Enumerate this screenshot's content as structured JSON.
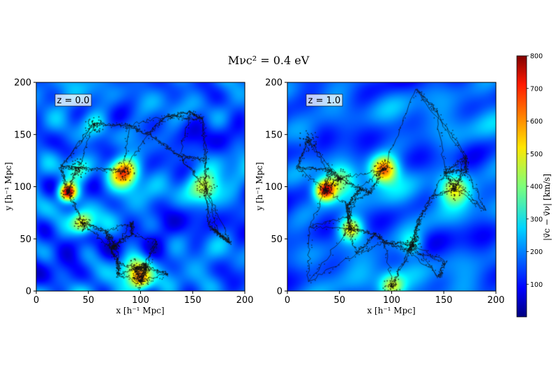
{
  "chart_data": [
    {
      "type": "heatmap",
      "panel_label": "z = 0.0",
      "xlim": [
        0,
        200
      ],
      "ylim": [
        0,
        200
      ],
      "xticks": [
        "0",
        "50",
        "100",
        "150",
        "200"
      ],
      "yticks": [
        "0",
        "50",
        "100",
        "150",
        "200"
      ],
      "hotspots": [
        [
          30,
          95,
          760
        ],
        [
          84,
          115,
          650
        ],
        [
          44,
          65,
          520
        ],
        [
          100,
          10,
          470
        ],
        [
          162,
          100,
          430
        ],
        [
          40,
          118,
          360
        ],
        [
          95,
          22,
          430
        ],
        [
          55,
          160,
          300
        ]
      ]
    },
    {
      "type": "heatmap",
      "panel_label": "z = 1.0",
      "xlim": [
        0,
        200
      ],
      "ylim": [
        0,
        200
      ],
      "xticks": [
        "0",
        "50",
        "100",
        "150",
        "200"
      ],
      "yticks": [
        "0",
        "50",
        "100",
        "150",
        "200"
      ],
      "hotspots": [
        [
          36,
          97,
          720
        ],
        [
          92,
          117,
          670
        ],
        [
          60,
          60,
          520
        ],
        [
          160,
          98,
          450
        ],
        [
          100,
          5,
          460
        ],
        [
          50,
          108,
          380
        ],
        [
          120,
          45,
          320
        ],
        [
          20,
          145,
          260
        ]
      ]
    }
  ],
  "title": "Mνc² = 0.4 eV",
  "xlabel": "x [h⁻¹ Mpc]",
  "ylabel": "y [h⁻¹ Mpc]",
  "colorbar": {
    "label": "|v⃗c − v⃗ν| [km/s]",
    "min": 0,
    "max": 800,
    "ticks": [
      "100",
      "200",
      "300",
      "400",
      "500",
      "600",
      "700",
      "800"
    ],
    "colormap": "jet"
  },
  "colors": {
    "background": "#ffffff",
    "filaments": "#111111"
  }
}
